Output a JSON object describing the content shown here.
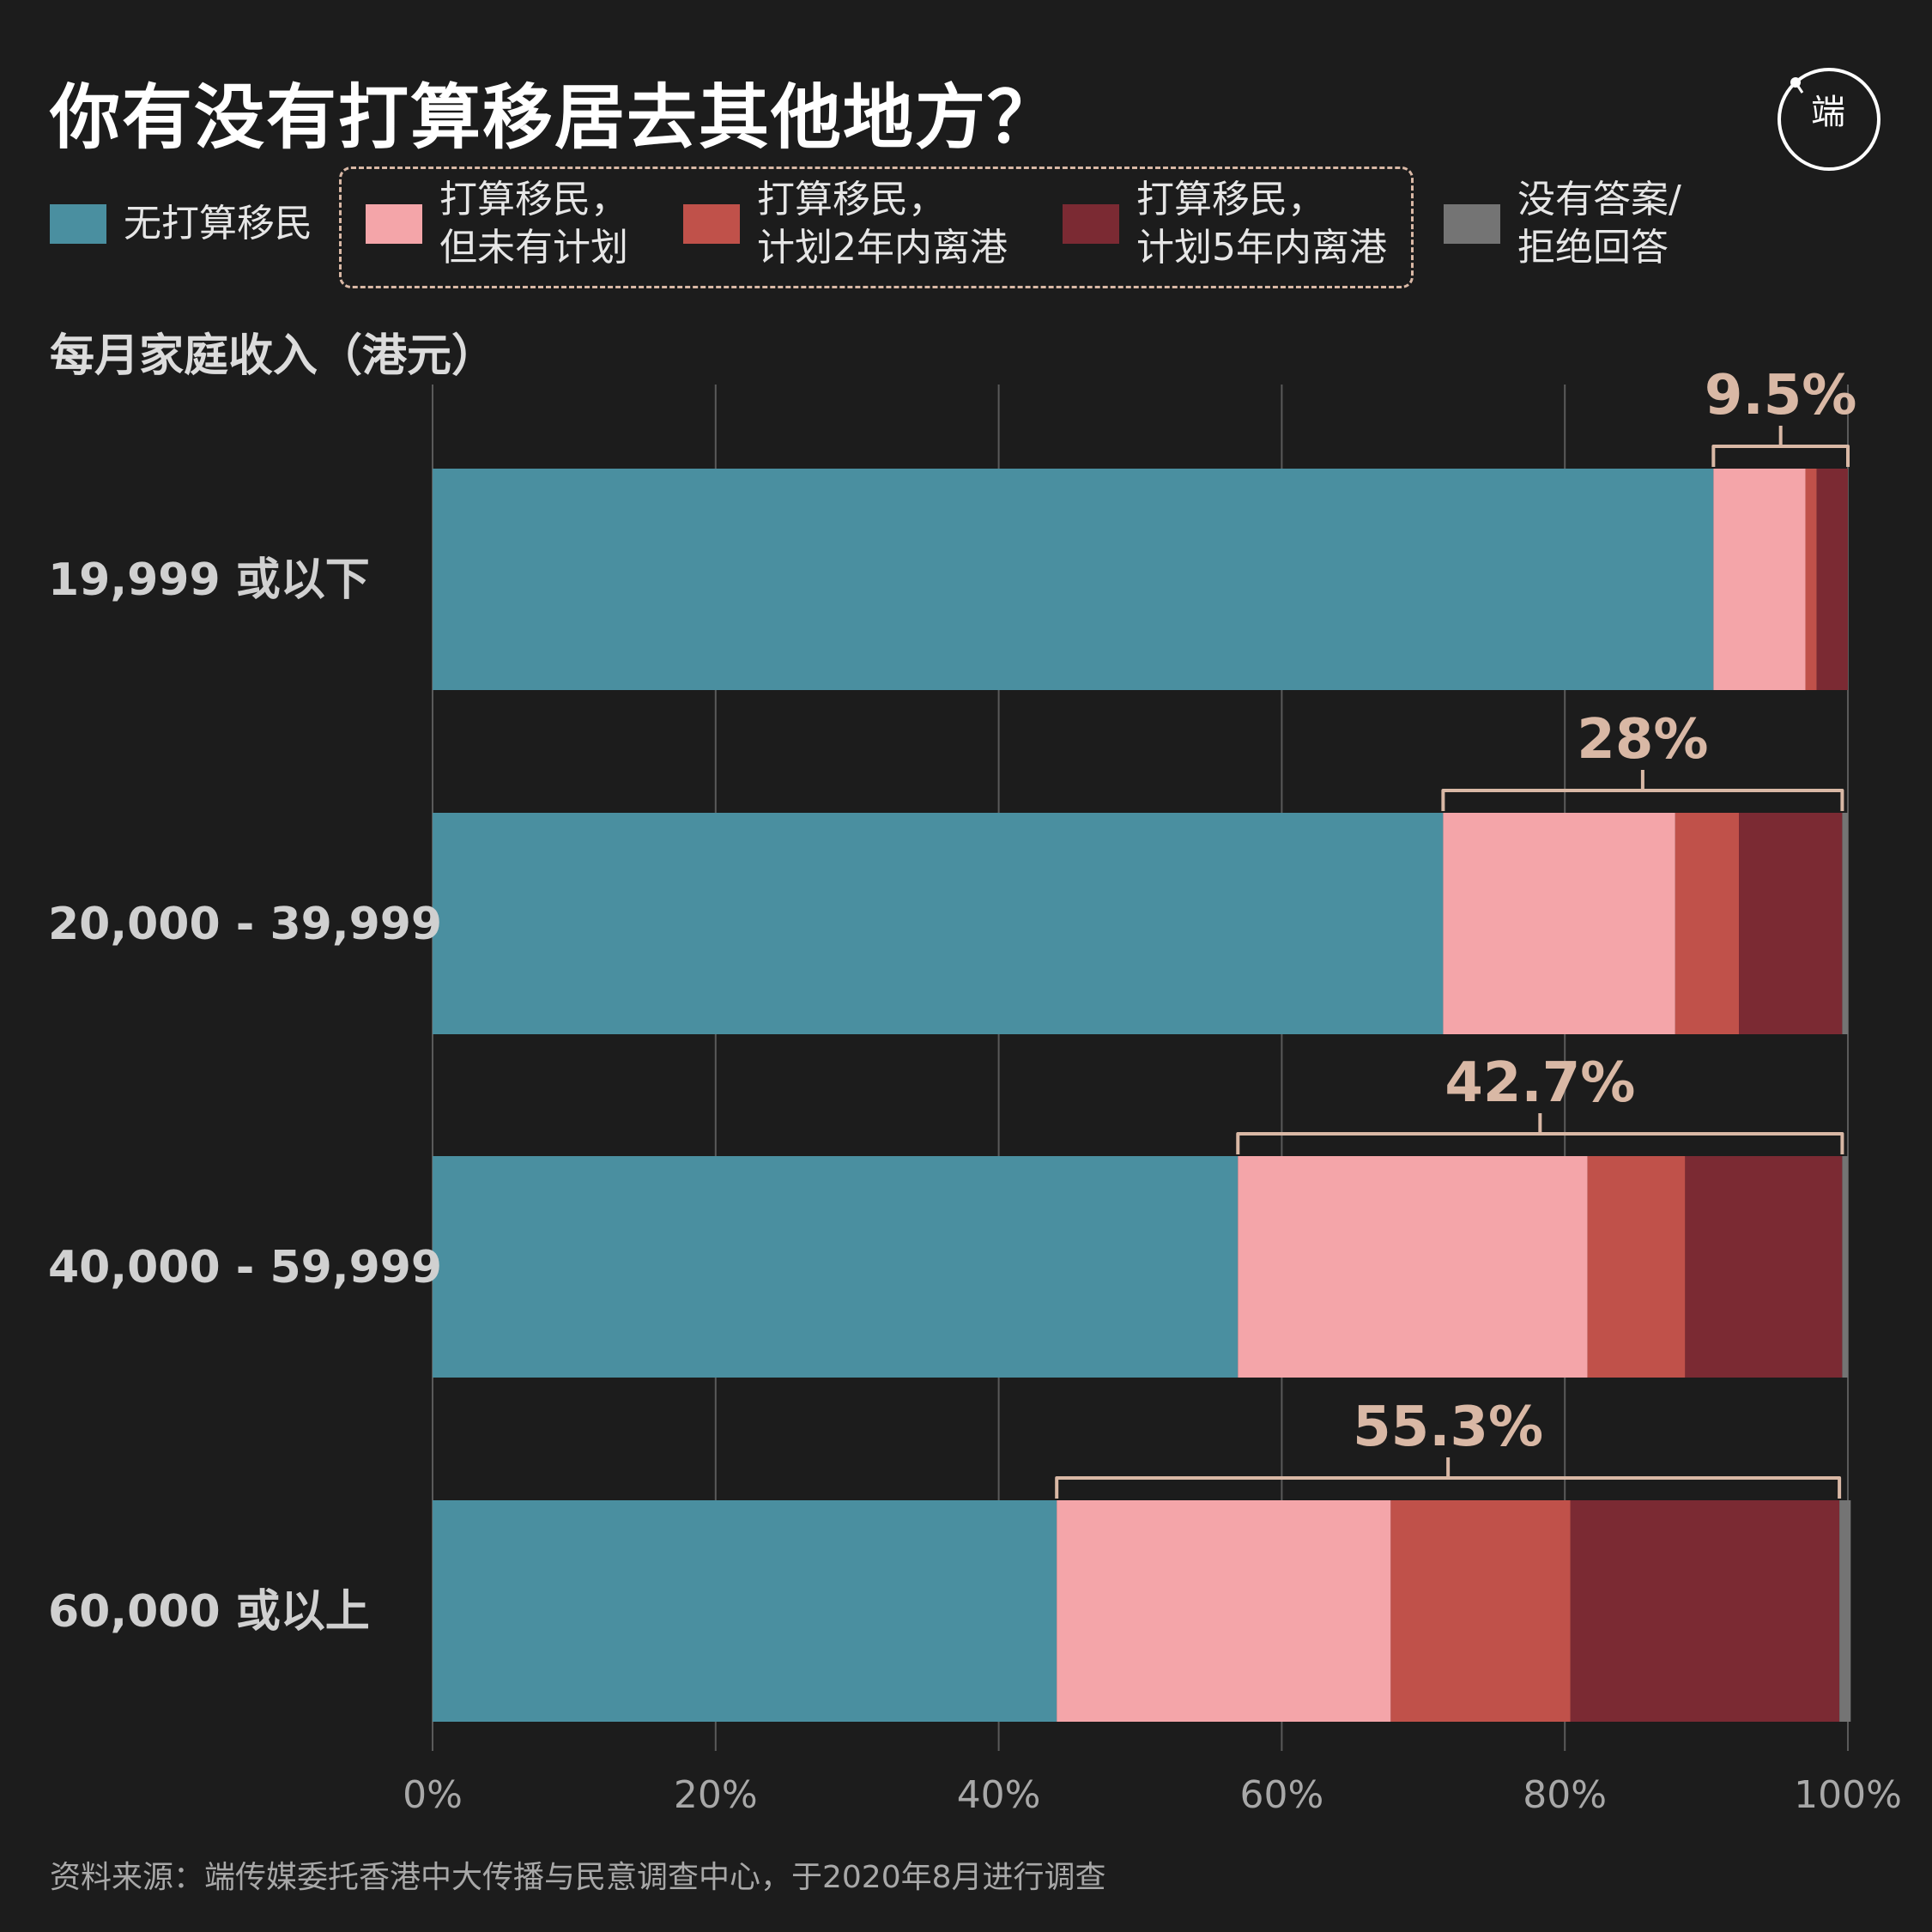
{
  "title": "你有没有打算移居去其他地方？",
  "legend": [
    {
      "label": "无打算移民",
      "color": "#4a8fa0"
    },
    {
      "label": "打算移民，\n但未有计划",
      "color": "#f4a5a9"
    },
    {
      "label": "打算移民，\n计划2年内离港",
      "color": "#c0514a"
    },
    {
      "label": "打算移民，\n计划5年内离港",
      "color": "#7b2a33"
    },
    {
      "label": "没有答案/\n拒绝回答",
      "color": "#747474"
    }
  ],
  "chart_data": {
    "type": "bar",
    "orientation": "horizontal",
    "stacked": true,
    "ylabel": "每月家庭收入（港元）",
    "categories": [
      "19,999 或以下",
      "20,000 - 39,999",
      "40,000 - 59,999",
      "60,000 或以上"
    ],
    "series": [
      {
        "name": "无打算移民",
        "color": "#4a8fa0",
        "values": [
          90.5,
          71.4,
          56.9,
          44.1
        ]
      },
      {
        "name": "打算移民，但未有计划",
        "color": "#f4a5a9",
        "values": [
          6.5,
          16.4,
          24.7,
          23.6
        ]
      },
      {
        "name": "打算移民，计划2年内离港",
        "color": "#c0514a",
        "values": [
          0.8,
          4.5,
          6.9,
          12.7
        ]
      },
      {
        "name": "打算移民，计划5年内离港",
        "color": "#7b2a33",
        "values": [
          2.2,
          7.3,
          11.1,
          19.0
        ]
      },
      {
        "name": "没有答案/拒绝回答",
        "color": "#747474",
        "values": [
          0.0,
          0.4,
          0.4,
          0.8
        ]
      }
    ],
    "annotations": [
      "9.5%",
      "28%",
      "42.7%",
      "55.3%"
    ],
    "xlim": [
      0,
      100
    ],
    "xticks": [
      "0%",
      "20%",
      "40%",
      "60%",
      "80%",
      "100%"
    ],
    "grid": true
  },
  "source": "资料来源：端传媒委托香港中大传播与民意调查中心，于2020年8月进行调查",
  "logo_text": "端"
}
